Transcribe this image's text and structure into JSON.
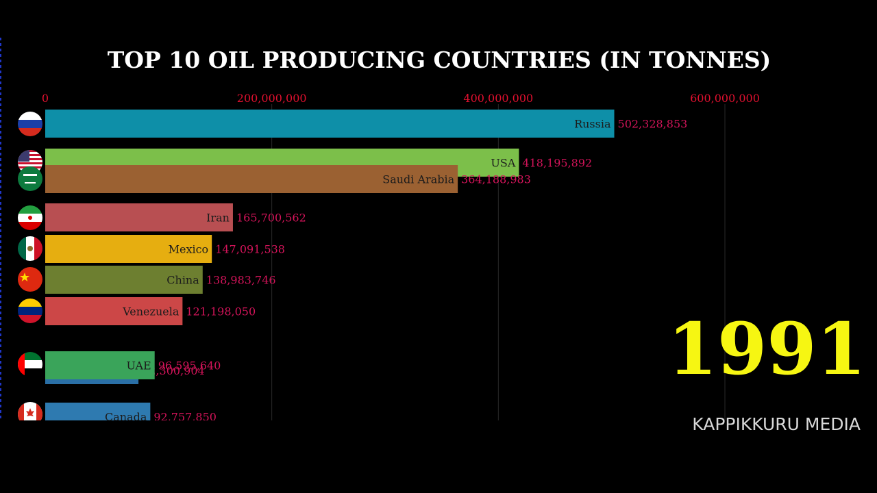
{
  "chart_data": {
    "type": "bar",
    "orientation": "horizontal",
    "title": "TOP 10 OIL PRODUCING COUNTRIES (IN TONNES)",
    "xlim": [
      0,
      720000000
    ],
    "x_ticks": [
      0,
      200000000,
      400000000,
      600000000
    ],
    "x_tick_labels": [
      "0",
      "200,000,000",
      "400,000,000",
      "600,000,000"
    ],
    "grid": true,
    "year": "1991",
    "categories": [
      "Russia",
      "USA",
      "Saudi Arabia",
      "Iran",
      "Mexico",
      "China",
      "Venezuela",
      "UAE",
      "",
      "Canada"
    ],
    "values": [
      502328853,
      418195892,
      364188983,
      165700562,
      147091538,
      138983746,
      121198050,
      96595640,
      82300904,
      92757850
    ],
    "value_labels": [
      "502,328,853",
      "418,195,892",
      "364,188,983",
      "165,700,562",
      "147,091,538",
      "138,983,746",
      "121,198,050",
      "96,595,640",
      "82,300,904",
      "92,757,850"
    ],
    "colors": [
      "#0e8fa8",
      "#7cbf4a",
      "#9b6132",
      "#b84f52",
      "#e6ae10",
      "#6d7f30",
      "#cc4747",
      "#3aa45a",
      "#2a6fa6",
      "#2e7ab0"
    ],
    "flags": [
      "russia-flag-icon",
      "usa-flag-icon",
      "saudi-arabia-flag-icon",
      "iran-flag-icon",
      "mexico-flag-icon",
      "china-flag-icon",
      "venezuela-flag-icon",
      "uae-flag-icon",
      "",
      "canada-flag-icon"
    ]
  },
  "watermark": "KAPPIKKURU MEDIA"
}
